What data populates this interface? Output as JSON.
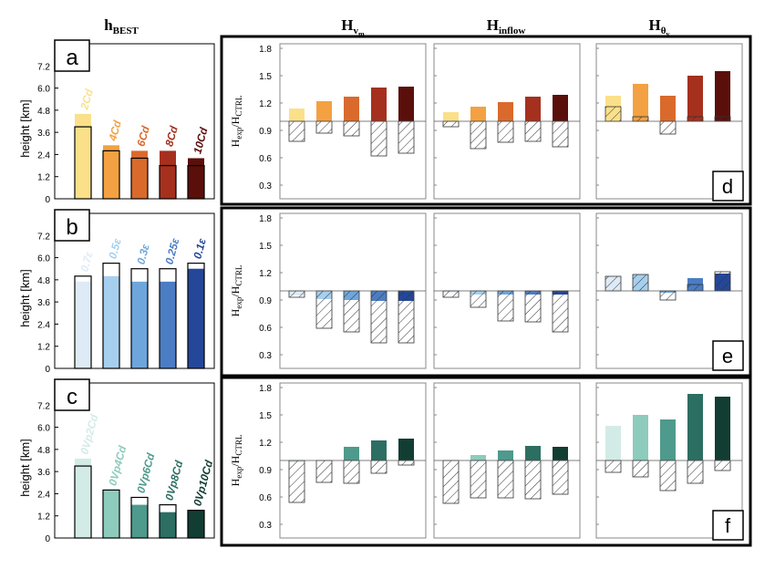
{
  "column_headers": {
    "h_best": {
      "main": "h",
      "sub": "BEST"
    },
    "h_vm": {
      "main": "H",
      "sub": "v",
      "subsub": "m"
    },
    "h_inflow": {
      "main": "H",
      "sub": "inflow"
    },
    "h_theta": {
      "main": "H",
      "sub": "θ",
      "subsub": "v"
    }
  },
  "left_ylabel": "height [km]",
  "right_ylabel": {
    "num_main": "H",
    "num_sub": "exp",
    "den_main": "H",
    "den_sub": "CTRL"
  },
  "panel_letters": [
    "a",
    "b",
    "c",
    "d",
    "e",
    "f"
  ],
  "chart_data": [
    {
      "type": "bar",
      "panel": "a",
      "ylabel": "height [km]",
      "ylim": [
        0,
        8.4
      ],
      "yticks": [
        "0",
        "1.2",
        "2.4",
        "3.6",
        "4.8",
        "6.0",
        "7.2"
      ],
      "categories": [
        "2Cd",
        "4Cd",
        "6Cd",
        "8Cd",
        "10Cd"
      ],
      "colors": [
        "#fbe08a",
        "#f3a142",
        "#d96a2c",
        "#a5301e",
        "#5a0f0b"
      ],
      "top_values": [
        4.6,
        2.9,
        2.6,
        2.6,
        2.2
      ],
      "outline_values": [
        3.9,
        2.6,
        2.2,
        1.8,
        1.8
      ]
    },
    {
      "type": "bar",
      "panel": "b",
      "ylabel": "height [km]",
      "ylim": [
        0,
        8.4
      ],
      "yticks": [
        "0",
        "1.2",
        "2.4",
        "3.6",
        "4.8",
        "6.0",
        "7.2"
      ],
      "categories": [
        "0.7ε",
        "0.5ε",
        "0.3ε",
        "0.25ε",
        "0.1ε"
      ],
      "colors": [
        "#deebf7",
        "#a6cfee",
        "#6ea6dc",
        "#4b7dc4",
        "#24479a"
      ],
      "top_values": [
        4.7,
        5.0,
        4.7,
        4.7,
        5.4
      ],
      "outline_values": [
        5.0,
        5.7,
        5.4,
        5.4,
        5.7
      ]
    },
    {
      "type": "bar",
      "panel": "c",
      "ylabel": "height [km]",
      "ylim": [
        0,
        8.4
      ],
      "yticks": [
        "0",
        "1.2",
        "2.4",
        "3.6",
        "4.8",
        "6.0",
        "7.2"
      ],
      "categories": [
        "0Vp2Cd",
        "0Vp4Cd",
        "0Vp6Cd",
        "0Vp8Cd",
        "0Vp10Cd"
      ],
      "colors": [
        "#d3ebe6",
        "#8dcbbd",
        "#4e9a8c",
        "#2c6e62",
        "#123d33"
      ],
      "top_values": [
        4.3,
        2.6,
        1.8,
        1.4,
        1.5
      ],
      "outline_values": [
        3.9,
        2.6,
        2.2,
        1.8,
        1.5
      ]
    },
    {
      "type": "bar",
      "panel": "d",
      "ylabel": "Hexp/HCTRL",
      "ylim": [
        0.15,
        1.85
      ],
      "yticks": [
        "0.3",
        "0.6",
        "0.9",
        "1.2",
        "1.5",
        "1.8"
      ],
      "baseline": 1.0,
      "colors": [
        "#fbe08a",
        "#f3a142",
        "#d96a2c",
        "#a5301e",
        "#5a0f0b"
      ],
      "subplots": [
        {
          "name": "Hvm",
          "filled": [
            1.14,
            1.22,
            1.27,
            1.37,
            1.38
          ],
          "hatched": [
            0.78,
            0.87,
            0.84,
            0.62,
            0.65
          ]
        },
        {
          "name": "Hinflow",
          "filled": [
            1.1,
            1.16,
            1.21,
            1.27,
            1.29
          ],
          "hatched": [
            0.94,
            0.7,
            0.77,
            0.78,
            0.72
          ]
        },
        {
          "name": "Hθv",
          "filled": [
            1.28,
            1.41,
            1.28,
            1.5,
            1.55
          ],
          "hatched": [
            1.16,
            1.05,
            0.86,
            1.05,
            1.05
          ]
        }
      ]
    },
    {
      "type": "bar",
      "panel": "e",
      "ylabel": "Hexp/HCTRL",
      "ylim": [
        0.15,
        1.85
      ],
      "yticks": [
        "0.3",
        "0.6",
        "0.9",
        "1.2",
        "1.5",
        "1.8"
      ],
      "baseline": 1.0,
      "colors": [
        "#deebf7",
        "#a6cfee",
        "#6ea6dc",
        "#4b7dc4",
        "#24479a"
      ],
      "subplots": [
        {
          "name": "Hvm",
          "filled": [
            0.95,
            0.91,
            0.9,
            0.89,
            0.89
          ],
          "hatched": [
            0.93,
            0.59,
            0.55,
            0.43,
            0.43
          ]
        },
        {
          "name": "Hinflow",
          "filled": [
            0.98,
            0.96,
            0.96,
            0.96,
            0.96
          ],
          "hatched": [
            0.93,
            0.82,
            0.67,
            0.66,
            0.55
          ]
        },
        {
          "name": "Hθv",
          "filled": [
            1.16,
            1.18,
            0.98,
            1.14,
            1.19
          ],
          "hatched": [
            1.16,
            1.18,
            0.9,
            1.07,
            1.21
          ]
        }
      ]
    },
    {
      "type": "bar",
      "panel": "f",
      "ylabel": "Hexp/HCTRL",
      "ylim": [
        0.15,
        1.85
      ],
      "yticks": [
        "0.3",
        "0.6",
        "0.9",
        "1.2",
        "1.5",
        "1.8"
      ],
      "baseline": 1.0,
      "colors": [
        "#d3ebe6",
        "#8dcbbd",
        "#4e9a8c",
        "#2c6e62",
        "#123d33"
      ],
      "subplots": [
        {
          "name": "Hvm",
          "filled": [
            0.98,
            1.0,
            1.15,
            1.22,
            1.24
          ],
          "hatched": [
            0.54,
            0.76,
            0.75,
            0.86,
            0.95
          ]
        },
        {
          "name": "Hinflow",
          "filled": [
            1.0,
            1.06,
            1.11,
            1.16,
            1.15
          ],
          "hatched": [
            0.53,
            0.59,
            0.59,
            0.58,
            0.63
          ]
        },
        {
          "name": "Hθv",
          "filled": [
            1.38,
            1.5,
            1.45,
            1.73,
            1.7
          ],
          "hatched": [
            0.87,
            0.82,
            0.67,
            0.75,
            0.89
          ]
        }
      ]
    }
  ]
}
